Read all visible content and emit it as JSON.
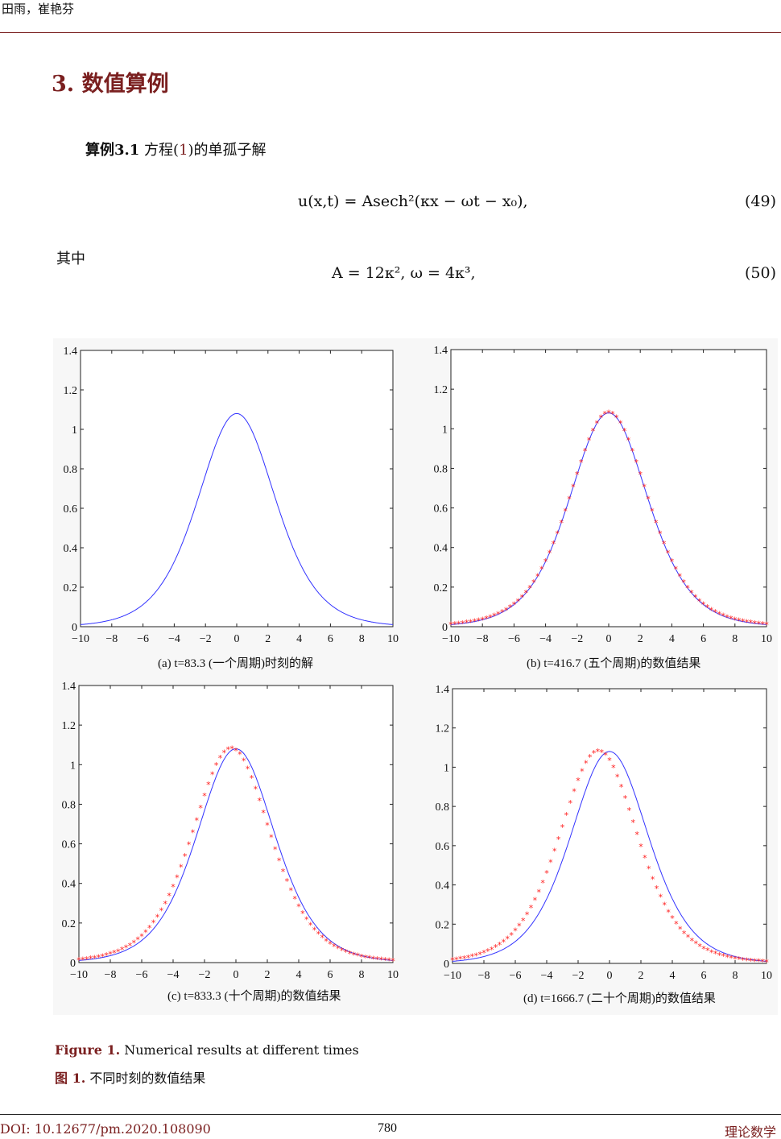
{
  "header": {
    "authors": "田雨，崔艳芬"
  },
  "section": {
    "title": "3. 数值算例"
  },
  "example": {
    "label": "算例3.1",
    "text_before": " 方程(",
    "ref": "1",
    "text_after": ")的单孤子解"
  },
  "equations": {
    "eq49": "u(x,t) = Asech²(κx − ωt − x₀),",
    "eq49_number": "(49)",
    "where": "其中",
    "eq50": "A = 12κ²,      ω = 4κ³,",
    "eq50_number": "(50)"
  },
  "chart_data": [
    {
      "type": "line",
      "caption": "(a) t=83.3 (一个周期)时刻的解",
      "xlim": [
        -10,
        10
      ],
      "ylim": [
        0,
        1.4
      ],
      "xticks": [
        "−10",
        "−8",
        "−6",
        "−4",
        "−2",
        "0",
        "2",
        "4",
        "6",
        "8",
        "10"
      ],
      "yticks": [
        "0",
        "0.2",
        "0.4",
        "0.6",
        "0.8",
        "1",
        "1.2",
        "1.4"
      ],
      "series": [
        {
          "name": "exact",
          "color": "#3333ff",
          "amplitude": 1.08,
          "kappa": 0.3,
          "center": 0
        }
      ]
    },
    {
      "type": "line",
      "caption": "(b) t=416.7 (五个周期)的数值结果",
      "xlim": [
        -10,
        10
      ],
      "ylim": [
        0,
        1.4
      ],
      "xticks": [
        "−10",
        "−8",
        "−6",
        "−4",
        "−2",
        "0",
        "2",
        "4",
        "6",
        "8",
        "10"
      ],
      "yticks": [
        "0",
        "0.2",
        "0.4",
        "0.6",
        "0.8",
        "1",
        "1.2",
        "1.4"
      ],
      "series": [
        {
          "name": "exact",
          "color": "#3333ff",
          "amplitude": 1.08,
          "kappa": 0.3,
          "center": 0
        },
        {
          "name": "numerical",
          "color": "#ff2020",
          "marker": "*",
          "amplitude": 1.08,
          "kappa": 0.3,
          "center": 0
        }
      ]
    },
    {
      "type": "line",
      "caption": "(c) t=833.3 (十个周期)的数值结果",
      "xlim": [
        -10,
        10
      ],
      "ylim": [
        0,
        1.4
      ],
      "xticks": [
        "−10",
        "−8",
        "−6",
        "−4",
        "−2",
        "0",
        "2",
        "4",
        "6",
        "8",
        "10"
      ],
      "yticks": [
        "0",
        "0.2",
        "0.4",
        "0.6",
        "0.8",
        "1",
        "1.2",
        "1.4"
      ],
      "series": [
        {
          "name": "exact",
          "color": "#3333ff",
          "amplitude": 1.08,
          "kappa": 0.3,
          "center": 0
        },
        {
          "name": "numerical",
          "color": "#ff2020",
          "marker": "*",
          "amplitude": 1.08,
          "kappa": 0.3,
          "center": -0.3
        }
      ]
    },
    {
      "type": "line",
      "caption": "(d) t=1666.7 (二十个周期)的数值结果",
      "xlim": [
        -10,
        10
      ],
      "ylim": [
        0,
        1.4
      ],
      "xticks": [
        "−10",
        "−8",
        "−6",
        "−4",
        "−2",
        "0",
        "2",
        "4",
        "6",
        "8",
        "10"
      ],
      "yticks": [
        "0",
        "0.2",
        "0.4",
        "0.6",
        "0.8",
        "1",
        "1.2",
        "1.4"
      ],
      "series": [
        {
          "name": "exact",
          "color": "#3333ff",
          "amplitude": 1.08,
          "kappa": 0.3,
          "center": 0
        },
        {
          "name": "numerical",
          "color": "#ff2020",
          "marker": "*",
          "amplitude": 1.08,
          "kappa": 0.3,
          "center": -0.7
        }
      ]
    }
  ],
  "figure": {
    "label_en": "Figure 1.",
    "caption_en": " Numerical results at different times",
    "label_zh": "图 1.",
    "caption_zh": " 不同时刻的数值结果"
  },
  "footer": {
    "doi": "DOI: 10.12677/pm.2020.108090",
    "page": "780",
    "journal": "理论数学"
  }
}
